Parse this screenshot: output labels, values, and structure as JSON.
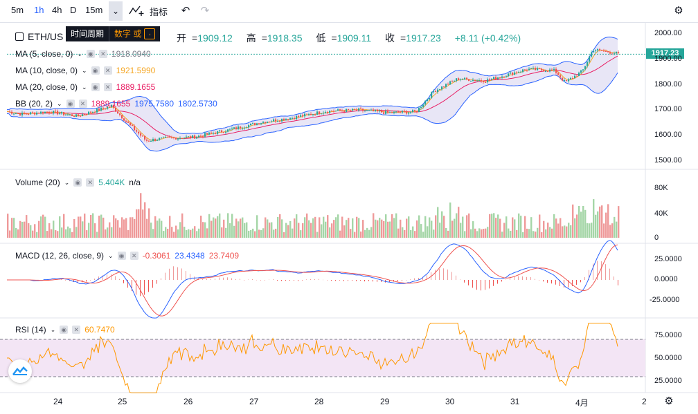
{
  "toolbar": {
    "timeframes": [
      "5m",
      "1h",
      "4h",
      "D",
      "15m"
    ],
    "active_timeframe": "1h",
    "indicators_label": "指标"
  },
  "tooltip": {
    "label": "时间周期",
    "hint": "数字 或",
    "key": ","
  },
  "symbol": {
    "name": "ETH/US",
    "open_label": "开",
    "open": "1909.12",
    "high_label": "高",
    "high": "1918.35",
    "low_label": "低",
    "low": "1909.11",
    "close_label": "收",
    "close": "1917.23",
    "change": "+8.11 (+0.42%)"
  },
  "colors": {
    "up": "#26a69a",
    "down": "#ef5350",
    "ma5": "#ff9800",
    "ma10": "#f5a623",
    "ma20": "#e91e63",
    "bb": "#2962ff",
    "bb_fill": "#e8e6f6",
    "macd": "#2962ff",
    "signal": "#ef5350",
    "rsi": "#ff9800",
    "rsi_band": "#f3e5f5"
  },
  "main": {
    "ma5": {
      "label": "MA (5, close, 0)",
      "value": "1918.0940"
    },
    "ma10": {
      "label": "MA (10, close, 0)",
      "value": "1921.5990"
    },
    "ma20": {
      "label": "MA (20, close, 0)",
      "value": "1889.1655"
    },
    "bb": {
      "label": "BB (20, 2)",
      "v1": "1889.1655",
      "v2": "1975.7580",
      "v3": "1802.5730"
    },
    "last_price": "1917.23",
    "y_ticks": [
      "2000.00",
      "1900.00",
      "1800.00",
      "1700.00",
      "1600.00",
      "1500.00"
    ]
  },
  "volume": {
    "label": "Volume (20)",
    "value": "5.404K",
    "na": "n/a",
    "y_ticks": [
      "80K",
      "40K",
      "0"
    ]
  },
  "macd": {
    "label": "MACD (12, 26, close, 9)",
    "hist": "-0.3061",
    "macd": "23.4348",
    "signal": "23.7409",
    "y_ticks": [
      "25.0000",
      "0.0000",
      "-25.0000"
    ]
  },
  "rsi": {
    "label": "RSI (14)",
    "value": "60.7470",
    "y_ticks": [
      "75.0000",
      "50.0000",
      "25.0000"
    ]
  },
  "x_axis": [
    "24",
    "25",
    "26",
    "27",
    "28",
    "29",
    "30",
    "31",
    "4月",
    "2"
  ]
}
